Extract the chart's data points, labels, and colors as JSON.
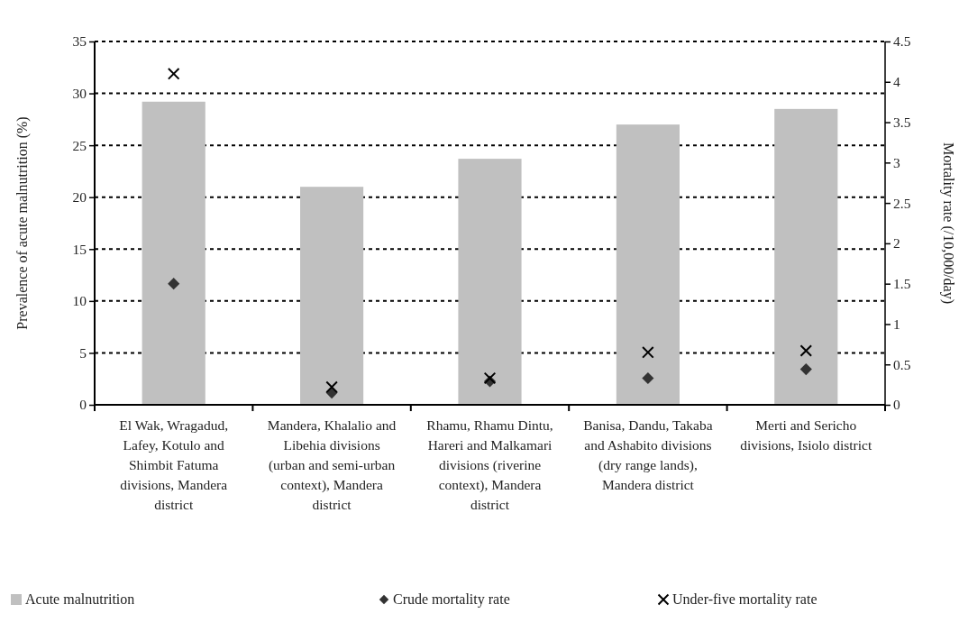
{
  "chart_data": {
    "type": "bar",
    "ylabel": "Prevalence of acute malnutrition (%)",
    "y2label": "Mortality rate (/10,000/day)",
    "categories": [
      "El Wak, Wragadud, Lafey, Kotulo and Shimbit Fatuma divisions, Mandera district",
      "Mandera, Khalalio and Libehia divisions (urban and semi-urban context), Mandera district",
      "Rhamu, Rhamu Dintu, Hareri and Malkamari divisions (riverine context), Mandera district",
      "Banisa, Dandu, Takaba and Ashabito divisions (dry range lands), Mandera district",
      "Merti and Sericho divisions, Isiolo district"
    ],
    "series": [
      {
        "name": "Acute malnutrition",
        "color": "#c0c0c0",
        "values": [
          29.2,
          21.0,
          23.7,
          27.0,
          28.5
        ]
      },
      {
        "name": "Crude mortality rate",
        "type": "scatter",
        "axis": "y2",
        "marker": "diamond",
        "color": "#333333",
        "values": [
          1.5,
          0.15,
          0.29,
          0.33,
          0.44
        ]
      },
      {
        "name": "Under-five mortality rate",
        "type": "scatter",
        "axis": "y2",
        "marker": "cross",
        "color": "#000000",
        "values": [
          4.1,
          0.22,
          0.33,
          0.65,
          0.67
        ]
      }
    ],
    "ylim": [
      0,
      35
    ],
    "yticks": [
      0,
      5,
      10,
      15,
      20,
      25,
      30,
      35
    ],
    "y2lim": [
      0,
      4.5
    ],
    "y2ticks": [
      0,
      0.5,
      1,
      1.5,
      2,
      2.5,
      3,
      3.5,
      4,
      4.5
    ],
    "grid": "y",
    "legend": "bottom"
  }
}
